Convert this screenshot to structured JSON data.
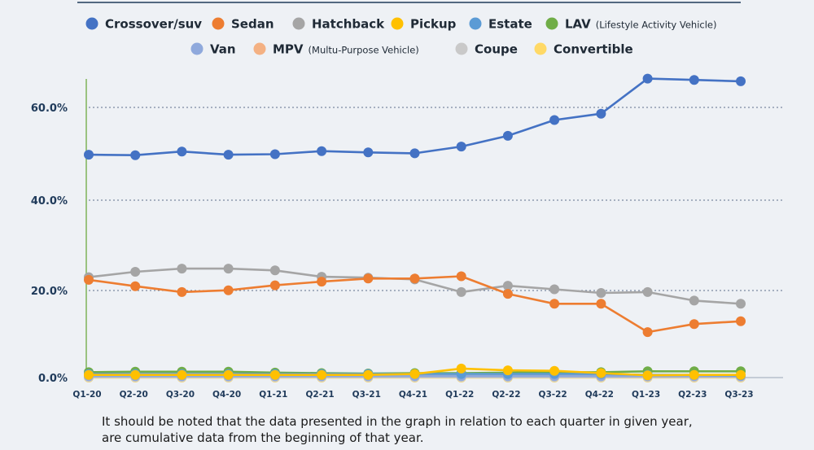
{
  "chart_data": {
    "type": "line",
    "categories": [
      "Q1-20",
      "Q2-20",
      "Q3-20",
      "Q4-20",
      "Q1-21",
      "Q2-21",
      "Q3-21",
      "Q4-21",
      "Q1-22",
      "Q2-22",
      "Q3-22",
      "Q4-22",
      "Q1-23",
      "Q2-23",
      "Q3-23"
    ],
    "yticks": [
      "0.0%",
      "20.0%",
      "40.0%",
      "60.0%"
    ],
    "ylim": [
      0,
      66
    ],
    "grid": "horizontal dotted",
    "legend_position": "top",
    "series": [
      {
        "name": "Crossover/suv",
        "color": "#4472c4",
        "values": [
          49.5,
          49.4,
          50.2,
          49.5,
          49.6,
          50.3,
          50.0,
          49.8,
          51.3,
          53.7,
          57.2,
          58.6,
          66.4,
          66.1,
          65.8
        ]
      },
      {
        "name": "Sedan",
        "color": "#ed7d31",
        "values": [
          21.7,
          20.3,
          19.0,
          19.4,
          20.5,
          21.3,
          22.0,
          22.0,
          22.5,
          18.6,
          16.4,
          16.4,
          10.1,
          11.9,
          12.5
        ]
      },
      {
        "name": "Hatchback",
        "color": "#a5a5a5",
        "values": [
          22.3,
          23.5,
          24.2,
          24.2,
          23.8,
          22.4,
          22.2,
          21.8,
          19.0,
          20.4,
          19.6,
          18.8,
          19.0,
          17.1,
          16.4
        ]
      },
      {
        "name": "Pickup",
        "color": "#ffc000",
        "values": [
          0.6,
          0.6,
          0.6,
          0.6,
          0.6,
          0.6,
          0.6,
          0.8,
          2.0,
          1.6,
          1.5,
          1.0,
          0.5,
          0.6,
          0.6
        ]
      },
      {
        "name": "Estate",
        "color": "#5b9bd5",
        "values": [
          0.8,
          0.8,
          0.8,
          0.8,
          0.8,
          0.8,
          0.8,
          0.8,
          0.8,
          0.8,
          0.8,
          0.8,
          0.6,
          0.6,
          0.5
        ]
      },
      {
        "name": "LAV",
        "sublabel": "(Lifestyle Activity Vehicle)",
        "color": "#70ad47",
        "values": [
          1.2,
          1.3,
          1.3,
          1.3,
          1.1,
          1.0,
          0.9,
          1.0,
          1.0,
          1.1,
          1.2,
          1.2,
          1.4,
          1.4,
          1.4
        ]
      },
      {
        "name": "Van",
        "color": "#8fa9dc",
        "values": [
          0.3,
          0.3,
          0.3,
          0.3,
          0.3,
          0.3,
          0.3,
          0.3,
          0.3,
          0.3,
          0.3,
          0.3,
          0.3,
          0.3,
          0.3
        ]
      },
      {
        "name": "MPV",
        "sublabel": "(Multu-Purpose Vehicle)",
        "color": "#f4b183",
        "values": [
          0.5,
          0.5,
          0.5,
          0.5,
          0.4,
          0.4,
          0.4,
          0.4,
          0.4,
          0.4,
          0.4,
          0.4,
          0.3,
          0.3,
          0.3
        ]
      },
      {
        "name": "Coupe",
        "color": "#c9c9c9",
        "values": [
          0.1,
          0.1,
          0.1,
          0.1,
          0.1,
          0.1,
          0.1,
          0.1,
          0.1,
          0.1,
          0.1,
          0.1,
          0.1,
          0.1,
          0.1
        ]
      },
      {
        "name": "Convertible",
        "color": "#ffd966",
        "values": [
          0.0,
          0.0,
          0.0,
          0.0,
          0.0,
          0.0,
          0.0,
          0.0,
          0.0,
          0.0,
          0.0,
          0.0,
          0.0,
          0.0,
          0.0
        ]
      }
    ]
  },
  "footnote": {
    "line1": "It should be noted that the data presented in the graph in relation to each quarter in given year,",
    "line2": "are cumulative data from the beginning of that year."
  }
}
